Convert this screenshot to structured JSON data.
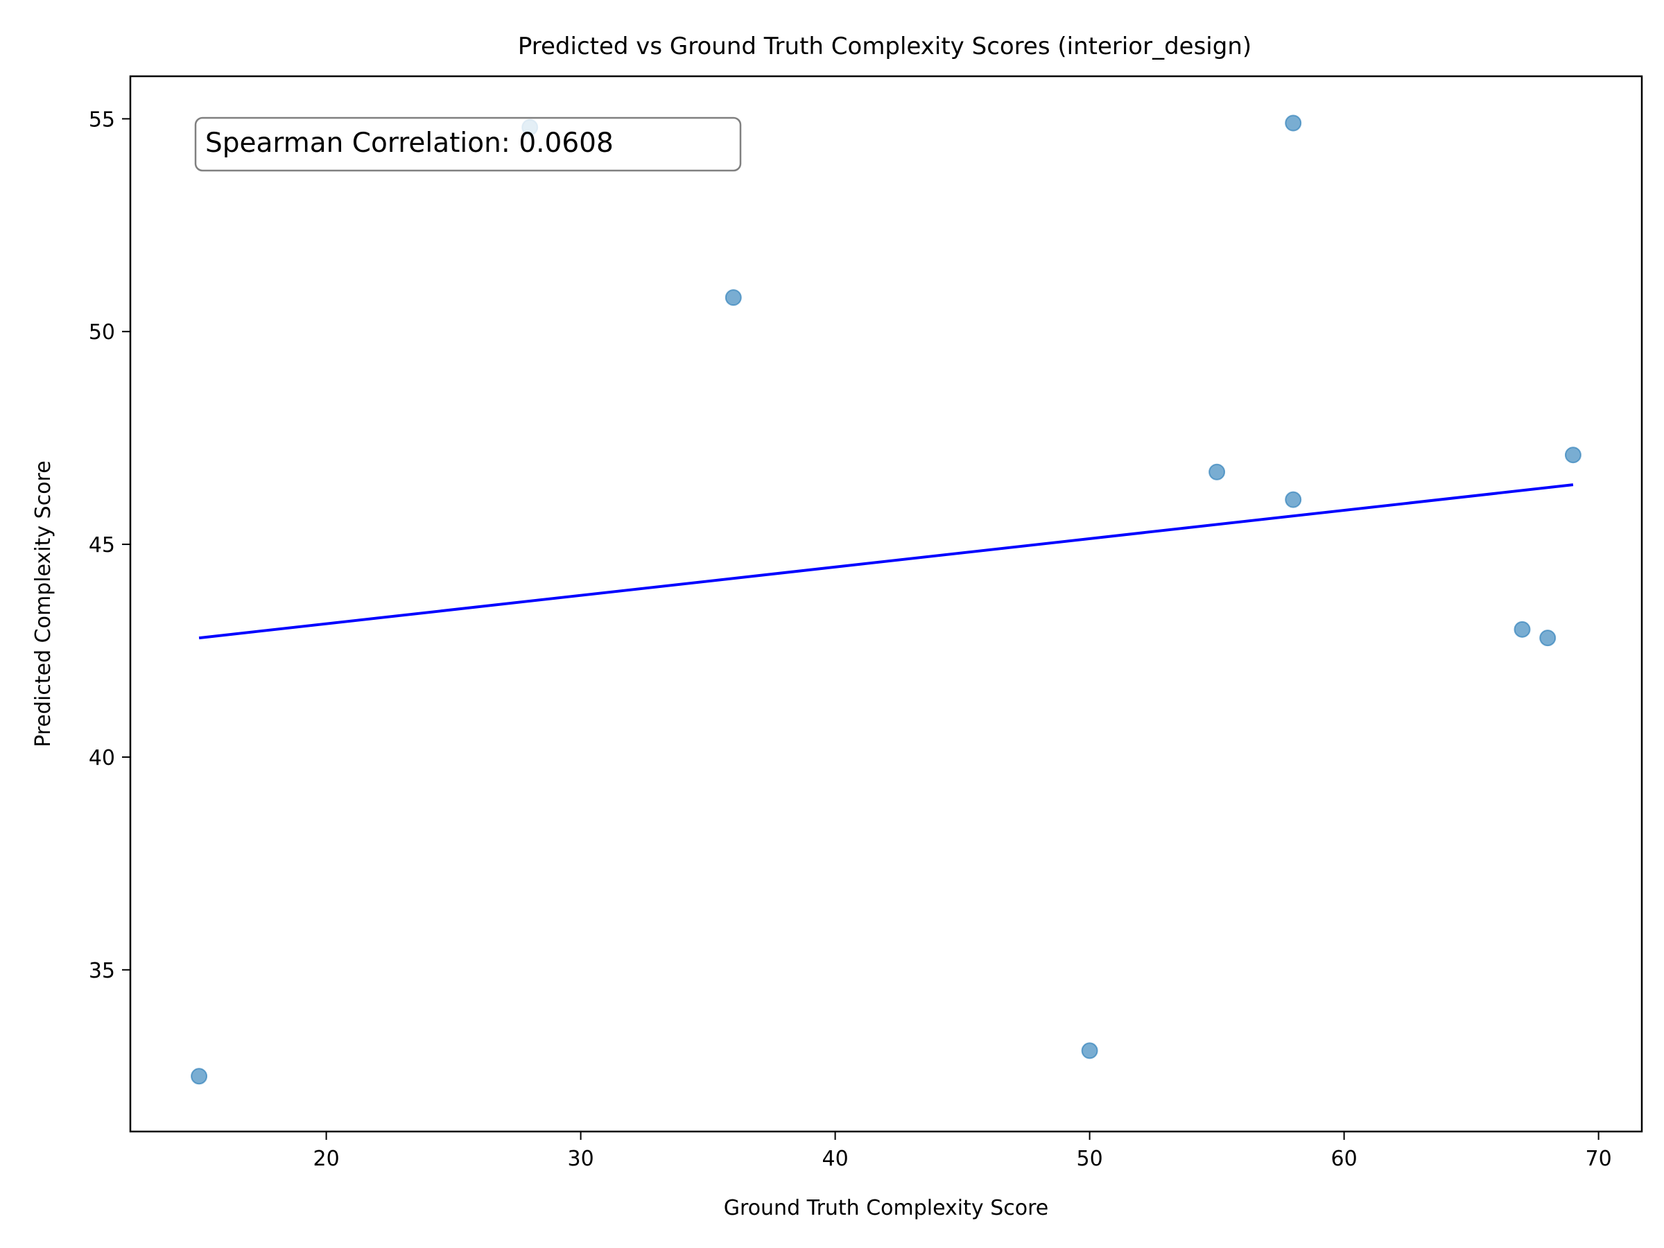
{
  "chart_data": {
    "type": "scatter",
    "title": "Predicted vs Ground Truth Complexity Scores (interior_design)",
    "xlabel": "Ground Truth Complexity Score",
    "ylabel": "Predicted Complexity Score",
    "xlim": [
      12.3,
      71.7
    ],
    "ylim": [
      31.2,
      56.0
    ],
    "xticks": [
      20,
      30,
      40,
      50,
      60,
      70
    ],
    "yticks": [
      35,
      40,
      45,
      50,
      55
    ],
    "xtick_labels": [
      "20",
      "30",
      "40",
      "50",
      "60",
      "70"
    ],
    "ytick_labels": [
      "35",
      "40",
      "45",
      "50",
      "55"
    ],
    "grid": false,
    "points": [
      {
        "x": 15,
        "y": 32.5
      },
      {
        "x": 28,
        "y": 54.8
      },
      {
        "x": 36,
        "y": 50.8
      },
      {
        "x": 50,
        "y": 33.1
      },
      {
        "x": 55,
        "y": 46.7
      },
      {
        "x": 58,
        "y": 54.9
      },
      {
        "x": 58,
        "y": 46.05
      },
      {
        "x": 67,
        "y": 43.0
      },
      {
        "x": 68,
        "y": 42.8
      },
      {
        "x": 69,
        "y": 47.1
      }
    ],
    "point_color": "#1f77b4",
    "point_opacity": 0.6,
    "fit_line": {
      "x": [
        15,
        69
      ],
      "y": [
        42.8,
        46.4
      ],
      "color": "#0000ff"
    },
    "annotation": "Spearman Correlation: 0.0608"
  }
}
